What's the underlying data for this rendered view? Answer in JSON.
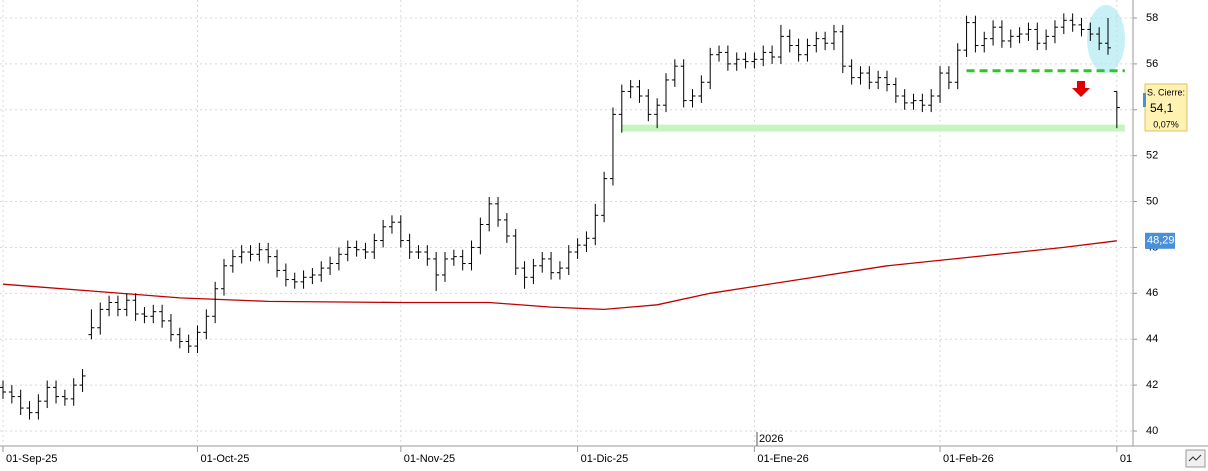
{
  "chart_data": {
    "type": "ohlc",
    "categories": [
      "01-Sep-25",
      null,
      null,
      null,
      null,
      null,
      null,
      null,
      null,
      null,
      null,
      null,
      null,
      null,
      null,
      null,
      null,
      null,
      null,
      null,
      null,
      null,
      "01-Oct-25",
      null,
      null,
      null,
      null,
      null,
      null,
      null,
      null,
      null,
      null,
      null,
      null,
      null,
      null,
      null,
      null,
      null,
      null,
      null,
      null,
      null,
      null,
      "01-Nov-25",
      null,
      null,
      null,
      null,
      null,
      null,
      null,
      null,
      null,
      null,
      null,
      null,
      null,
      null,
      null,
      null,
      null,
      null,
      null,
      "01-Dic-25",
      null,
      null,
      null,
      null,
      null,
      null,
      null,
      null,
      null,
      null,
      null,
      null,
      null,
      null,
      null,
      null,
      null,
      null,
      null,
      "01-Ene-26",
      null,
      null,
      null,
      null,
      null,
      null,
      null,
      null,
      null,
      null,
      null,
      null,
      null,
      null,
      null,
      null,
      null,
      null,
      null,
      null,
      "01-Feb-26",
      null,
      null,
      null,
      null,
      null,
      null,
      null,
      null,
      null,
      null,
      null,
      null,
      null,
      null,
      null,
      null,
      null,
      null,
      null,
      "01"
    ],
    "year_label": "2026",
    "color": "#000000",
    "open": [
      41.9,
      41.7,
      41.5,
      41.0,
      40.8,
      41.3,
      41.9,
      41.5,
      41.4,
      42.0,
      44.2,
      44.5,
      45.3,
      45.6,
      45.3,
      45.7,
      45.1,
      45.0,
      45.2,
      44.8,
      44.2,
      43.9,
      43.7,
      44.3,
      45.0,
      46.2,
      47.2,
      47.6,
      47.8,
      47.7,
      47.9,
      47.6,
      47.0,
      46.6,
      46.5,
      46.7,
      46.8,
      47.1,
      47.3,
      47.7,
      48.0,
      47.9,
      47.8,
      48.3,
      48.9,
      49.1,
      48.3,
      47.8,
      47.8,
      47.5,
      46.8,
      47.5,
      47.6,
      47.3,
      48.0,
      49.0,
      49.9,
      49.2,
      48.5,
      47.1,
      46.7,
      47.2,
      47.5,
      46.9,
      47.1,
      47.8,
      48.1,
      48.4,
      49.4,
      51.0,
      53.8,
      54.8,
      55.0,
      54.6,
      53.8,
      54.2,
      55.3,
      55.9,
      54.4,
      54.6,
      55.2,
      56.4,
      56.5,
      56.0,
      56.2,
      56.1,
      56.2,
      56.5,
      56.3,
      57.2,
      56.8,
      56.4,
      56.8,
      57.1,
      56.9,
      57.4,
      55.9,
      55.4,
      55.6,
      55.2,
      55.4,
      55.1,
      54.6,
      54.3,
      54.4,
      54.2,
      54.6,
      55.6,
      55.2,
      56.6,
      57.8,
      56.8,
      57.1,
      57.6,
      57.0,
      57.2,
      57.3,
      57.5,
      56.9,
      57.2,
      57.6,
      57.9,
      57.7,
      57.5,
      57.3,
      56.9,
      54.8
    ],
    "high": [
      42.2,
      42.0,
      41.8,
      41.3,
      41.6,
      42.2,
      42.2,
      41.8,
      42.3,
      42.7,
      45.3,
      45.6,
      45.9,
      45.9,
      46.0,
      46.0,
      45.4,
      45.5,
      45.5,
      45.1,
      44.5,
      44.2,
      44.6,
      45.3,
      46.5,
      47.5,
      47.9,
      48.1,
      48.1,
      48.2,
      48.2,
      47.9,
      47.3,
      46.9,
      47.0,
      47.1,
      47.4,
      47.6,
      48.0,
      48.3,
      48.3,
      48.2,
      48.6,
      49.2,
      49.4,
      49.4,
      48.6,
      48.1,
      48.1,
      47.8,
      47.8,
      47.9,
      47.9,
      48.3,
      49.3,
      50.2,
      50.2,
      49.5,
      48.8,
      47.4,
      47.5,
      47.8,
      47.8,
      47.4,
      48.1,
      48.4,
      48.7,
      49.9,
      51.3,
      54.1,
      55.1,
      55.3,
      55.3,
      54.9,
      54.5,
      55.6,
      56.2,
      56.2,
      54.9,
      55.5,
      56.7,
      56.8,
      56.8,
      56.5,
      56.5,
      56.5,
      56.8,
      56.8,
      57.7,
      57.5,
      57.1,
      57.1,
      57.4,
      57.4,
      57.7,
      57.7,
      56.2,
      55.9,
      55.9,
      55.7,
      55.7,
      55.4,
      54.9,
      54.7,
      54.7,
      54.9,
      55.9,
      55.9,
      56.9,
      58.1,
      58.1,
      57.4,
      57.9,
      57.9,
      57.5,
      57.6,
      57.8,
      57.8,
      57.5,
      57.9,
      58.2,
      58.2,
      58.0,
      57.8,
      57.6,
      58.0,
      54.8
    ],
    "low": [
      41.4,
      41.2,
      40.7,
      40.5,
      40.5,
      41.0,
      41.2,
      41.1,
      41.1,
      41.7,
      44.0,
      44.2,
      45.0,
      45.0,
      45.0,
      44.8,
      44.7,
      44.7,
      44.5,
      43.9,
      43.6,
      43.4,
      43.4,
      44.0,
      44.7,
      45.9,
      46.9,
      47.3,
      47.4,
      47.4,
      47.3,
      46.7,
      46.3,
      46.2,
      46.2,
      46.4,
      46.5,
      46.8,
      47.0,
      47.4,
      47.6,
      47.5,
      47.5,
      48.0,
      48.6,
      48.0,
      47.5,
      47.5,
      47.2,
      46.1,
      46.5,
      47.2,
      47.0,
      47.0,
      47.7,
      48.7,
      48.9,
      48.2,
      46.8,
      46.2,
      46.4,
      46.9,
      46.6,
      46.6,
      46.8,
      47.5,
      47.8,
      48.1,
      49.1,
      50.7,
      53.0,
      54.5,
      54.3,
      53.5,
      53.2,
      53.9,
      55.0,
      54.1,
      54.1,
      54.3,
      54.9,
      56.1,
      55.7,
      55.7,
      55.8,
      55.8,
      55.9,
      56.0,
      56.0,
      56.5,
      56.1,
      56.1,
      56.5,
      56.6,
      56.6,
      55.6,
      55.1,
      55.1,
      54.9,
      54.9,
      54.8,
      54.3,
      54.0,
      54.0,
      53.9,
      53.9,
      54.3,
      54.9,
      54.9,
      56.3,
      56.5,
      56.5,
      56.8,
      56.7,
      56.7,
      56.9,
      57.0,
      56.6,
      56.6,
      56.9,
      57.3,
      57.4,
      57.2,
      57.0,
      56.6,
      56.4,
      53.2
    ],
    "close": [
      41.7,
      41.5,
      41.0,
      40.8,
      41.3,
      41.9,
      41.5,
      41.4,
      42.0,
      42.4,
      44.5,
      45.3,
      45.6,
      45.3,
      45.7,
      45.1,
      45.0,
      45.2,
      44.8,
      44.2,
      43.9,
      43.7,
      44.3,
      45.0,
      46.2,
      47.2,
      47.6,
      47.8,
      47.7,
      47.9,
      47.6,
      47.0,
      46.6,
      46.5,
      46.7,
      46.8,
      47.1,
      47.3,
      47.7,
      48.0,
      47.9,
      47.8,
      48.3,
      48.9,
      49.1,
      48.3,
      47.8,
      47.8,
      47.5,
      46.8,
      47.5,
      47.6,
      47.3,
      48.0,
      49.0,
      49.9,
      49.2,
      48.5,
      47.1,
      46.7,
      47.2,
      47.5,
      46.9,
      47.1,
      47.8,
      48.1,
      48.4,
      49.4,
      51.0,
      53.8,
      54.8,
      55.0,
      54.6,
      53.8,
      54.2,
      55.3,
      55.9,
      54.4,
      54.6,
      55.2,
      56.4,
      56.5,
      56.0,
      56.2,
      56.1,
      56.2,
      56.5,
      56.3,
      57.2,
      56.8,
      56.4,
      56.8,
      57.1,
      56.9,
      57.4,
      55.9,
      55.4,
      55.6,
      55.2,
      55.4,
      55.1,
      54.6,
      54.3,
      54.4,
      54.2,
      54.6,
      55.6,
      55.2,
      56.6,
      57.8,
      56.8,
      57.1,
      57.6,
      57.0,
      57.2,
      57.3,
      57.5,
      56.9,
      57.2,
      57.6,
      57.9,
      57.7,
      57.5,
      57.3,
      56.9,
      56.7,
      54.1
    ],
    "ma": {
      "color": "#c00000",
      "x": [
        0,
        10,
        20,
        30,
        45,
        55,
        62,
        68,
        74,
        80,
        90,
        100,
        110,
        120,
        126
      ],
      "values": [
        46.4,
        46.1,
        45.8,
        45.65,
        45.6,
        45.6,
        45.4,
        45.3,
        45.5,
        46.0,
        46.6,
        47.2,
        47.6,
        48.0,
        48.29
      ],
      "value_label": "48,29"
    },
    "support": {
      "value": 53.2,
      "x": [
        70,
        126
      ],
      "color": "#c6f5c0"
    },
    "resistance": {
      "value": 55.7,
      "x": [
        109,
        126
      ],
      "color": "#22cc22"
    },
    "price_box": {
      "title": "S. Cierre:",
      "value_label": "54,1",
      "change": "0,07%"
    },
    "ylim": [
      39.5,
      58.5
    ],
    "yticks": [
      40,
      42,
      44,
      46,
      48,
      50,
      52,
      54,
      56,
      58
    ],
    "grid": true
  }
}
